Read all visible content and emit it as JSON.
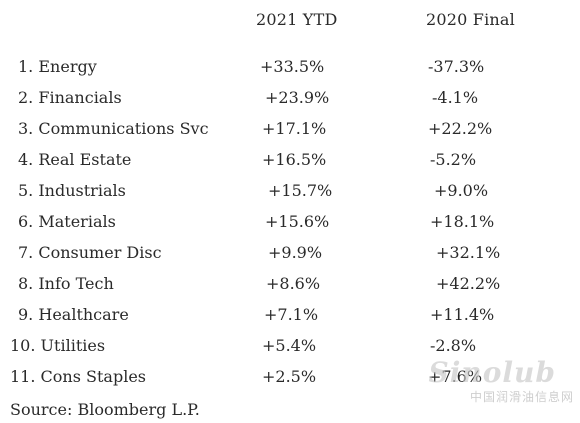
{
  "chart_data": {
    "type": "table",
    "columns": [
      "2021 YTD",
      "2020 Final"
    ],
    "rows": [
      {
        "rank": "1.",
        "sector": "Energy",
        "ytd_2021": "+33.5%",
        "final_2020": "-37.3%"
      },
      {
        "rank": "2.",
        "sector": "Financials",
        "ytd_2021": "+23.9%",
        "final_2020": "-4.1%"
      },
      {
        "rank": "3.",
        "sector": "Communications Svc",
        "ytd_2021": "+17.1%",
        "final_2020": "+22.2%"
      },
      {
        "rank": "4.",
        "sector": "Real Estate",
        "ytd_2021": "+16.5%",
        "final_2020": "-5.2%"
      },
      {
        "rank": "5.",
        "sector": "Industrials",
        "ytd_2021": "+15.7%",
        "final_2020": "+9.0%"
      },
      {
        "rank": "6.",
        "sector": "Materials",
        "ytd_2021": "+15.6%",
        "final_2020": "+18.1%"
      },
      {
        "rank": "7.",
        "sector": "Consumer Disc",
        "ytd_2021": "+9.9%",
        "final_2020": "+32.1%"
      },
      {
        "rank": "8.",
        "sector": "Info Tech",
        "ytd_2021": "+8.6%",
        "final_2020": "+42.2%"
      },
      {
        "rank": "9.",
        "sector": "Healthcare",
        "ytd_2021": "+7.1%",
        "final_2020": "+11.4%"
      },
      {
        "rank": "10.",
        "sector": "Utilities",
        "ytd_2021": "+5.4%",
        "final_2020": "-2.8%"
      },
      {
        "rank": "11.",
        "sector": "Cons Staples",
        "ytd_2021": "+2.5%",
        "final_2020": "+7.6%"
      }
    ],
    "source": "Source: Bloomberg L.P."
  },
  "watermark": {
    "logo": "Sinolub",
    "subtitle": "中国润滑油信息网"
  },
  "colors": {
    "text": "#2a2a2a",
    "background": "#ffffff"
  }
}
